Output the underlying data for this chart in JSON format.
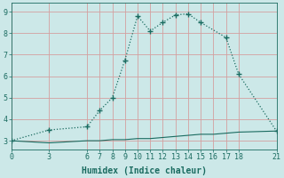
{
  "xlabel": "Humidex (Indice chaleur)",
  "bg_color": "#cce8e8",
  "grid_color": "#b8d8d8",
  "line_color": "#1a6b60",
  "curve1_x": [
    0,
    3,
    6,
    7,
    8,
    9,
    10,
    11,
    12,
    13,
    14,
    15,
    17,
    18,
    21
  ],
  "curve1_y": [
    3.0,
    3.5,
    3.65,
    4.4,
    5.0,
    6.75,
    8.8,
    8.1,
    8.5,
    8.85,
    8.9,
    8.5,
    7.8,
    6.1,
    3.45
  ],
  "curve2_x": [
    0,
    3,
    6,
    7,
    8,
    9,
    10,
    11,
    12,
    13,
    14,
    15,
    16,
    17,
    18,
    21
  ],
  "curve2_y": [
    3.0,
    2.9,
    3.0,
    3.0,
    3.05,
    3.05,
    3.1,
    3.1,
    3.15,
    3.2,
    3.25,
    3.3,
    3.3,
    3.35,
    3.4,
    3.45
  ],
  "xlim": [
    0,
    21
  ],
  "ylim": [
    2.6,
    9.4
  ],
  "xticks": [
    0,
    3,
    6,
    7,
    8,
    9,
    10,
    11,
    12,
    13,
    14,
    15,
    16,
    17,
    18,
    21
  ],
  "yticks": [
    3,
    4,
    5,
    6,
    7,
    8,
    9
  ],
  "tick_fontsize": 6,
  "xlabel_fontsize": 7
}
